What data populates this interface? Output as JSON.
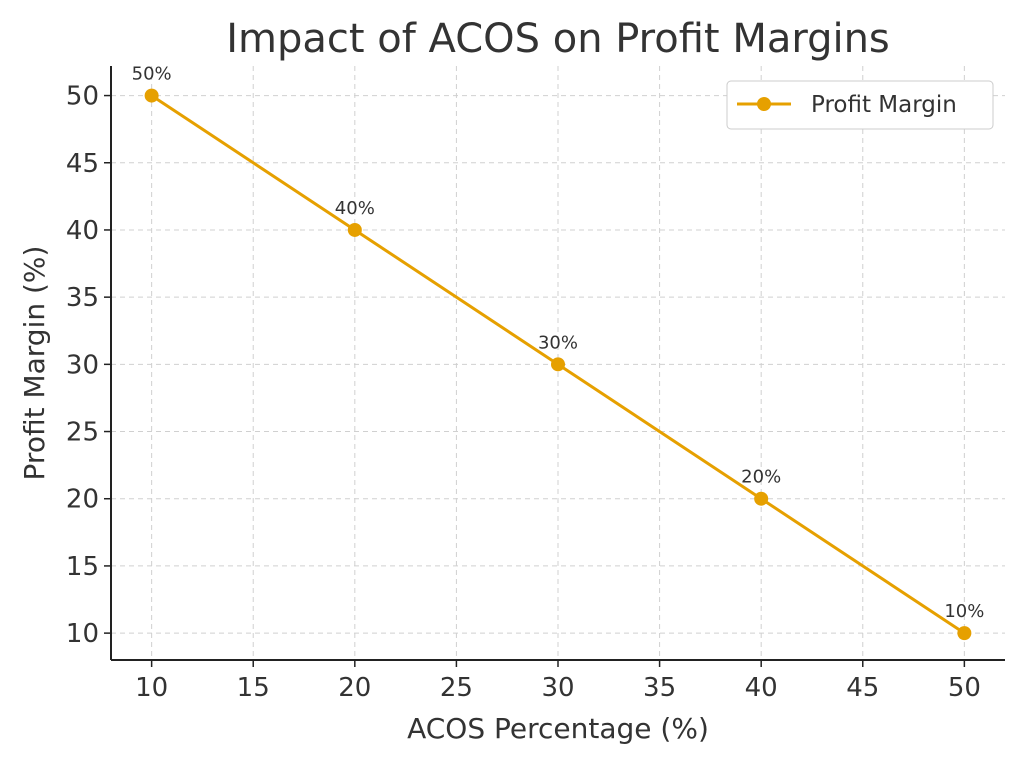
{
  "chart_data": {
    "type": "line",
    "title": "Impact of ACOS on Profit Margins",
    "xlabel": "ACOS Percentage (%)",
    "ylabel": "Profit Margin (%)",
    "xlim": [
      8,
      52
    ],
    "ylim": [
      8,
      52.2
    ],
    "xticks": [
      10,
      15,
      20,
      25,
      30,
      35,
      40,
      45,
      50
    ],
    "yticks": [
      10,
      15,
      20,
      25,
      30,
      35,
      40,
      45,
      50
    ],
    "grid": true,
    "legend_position": "top-right",
    "series": [
      {
        "name": "Profit Margin",
        "color": "#E6A000",
        "x": [
          10,
          20,
          30,
          40,
          50
        ],
        "y": [
          50,
          40,
          30,
          20,
          10
        ],
        "labels": [
          "50%",
          "40%",
          "30%",
          "20%",
          "10%"
        ]
      }
    ]
  }
}
